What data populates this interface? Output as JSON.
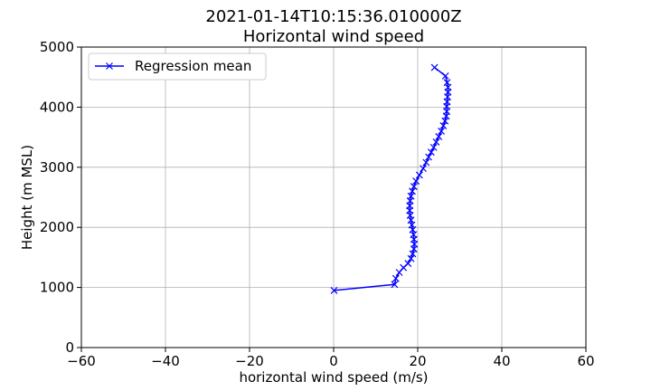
{
  "chart_data": {
    "type": "line",
    "title_line1": "2021-01-14T10:15:36.010000Z",
    "title_line2": "Horizontal wind speed",
    "xlabel": "horizontal wind speed (m/s)",
    "ylabel": "Height (m MSL)",
    "xlim": [
      -60,
      60
    ],
    "ylim": [
      0,
      5000
    ],
    "xticks": [
      -60,
      -40,
      -20,
      0,
      20,
      40,
      60
    ],
    "xtick_labels": [
      "−60",
      "−40",
      "−20",
      "0",
      "20",
      "40",
      "60"
    ],
    "yticks": [
      0,
      1000,
      2000,
      3000,
      4000,
      5000
    ],
    "ytick_labels": [
      "0",
      "1000",
      "2000",
      "3000",
      "4000",
      "5000"
    ],
    "grid": true,
    "legend_position": "top-left",
    "series": [
      {
        "name": "Regression mean",
        "color": "#0000ff",
        "marker": "x",
        "x": [
          0.1,
          14.5,
          14.8,
          15.6,
          16.6,
          17.7,
          18.4,
          18.8,
          19.1,
          19.2,
          19.1,
          19.0,
          18.8,
          18.6,
          18.4,
          18.2,
          18.1,
          18.1,
          18.2,
          18.4,
          18.7,
          19.1,
          19.6,
          20.4,
          21.3,
          22.0,
          22.6,
          23.2,
          23.8,
          24.4,
          25.0,
          25.6,
          26.1,
          26.5,
          26.8,
          26.9,
          26.9,
          27.0,
          27.1,
          27.2,
          27.2,
          27.0,
          26.6,
          24.0
        ],
        "y": [
          950,
          1050,
          1150,
          1250,
          1330,
          1400,
          1480,
          1560,
          1640,
          1720,
          1800,
          1880,
          1960,
          2040,
          2120,
          2200,
          2280,
          2360,
          2440,
          2520,
          2600,
          2680,
          2770,
          2870,
          2980,
          3080,
          3170,
          3250,
          3330,
          3420,
          3510,
          3600,
          3690,
          3770,
          3850,
          3930,
          4010,
          4090,
          4170,
          4250,
          4330,
          4410,
          4520,
          4660
        ]
      }
    ]
  }
}
